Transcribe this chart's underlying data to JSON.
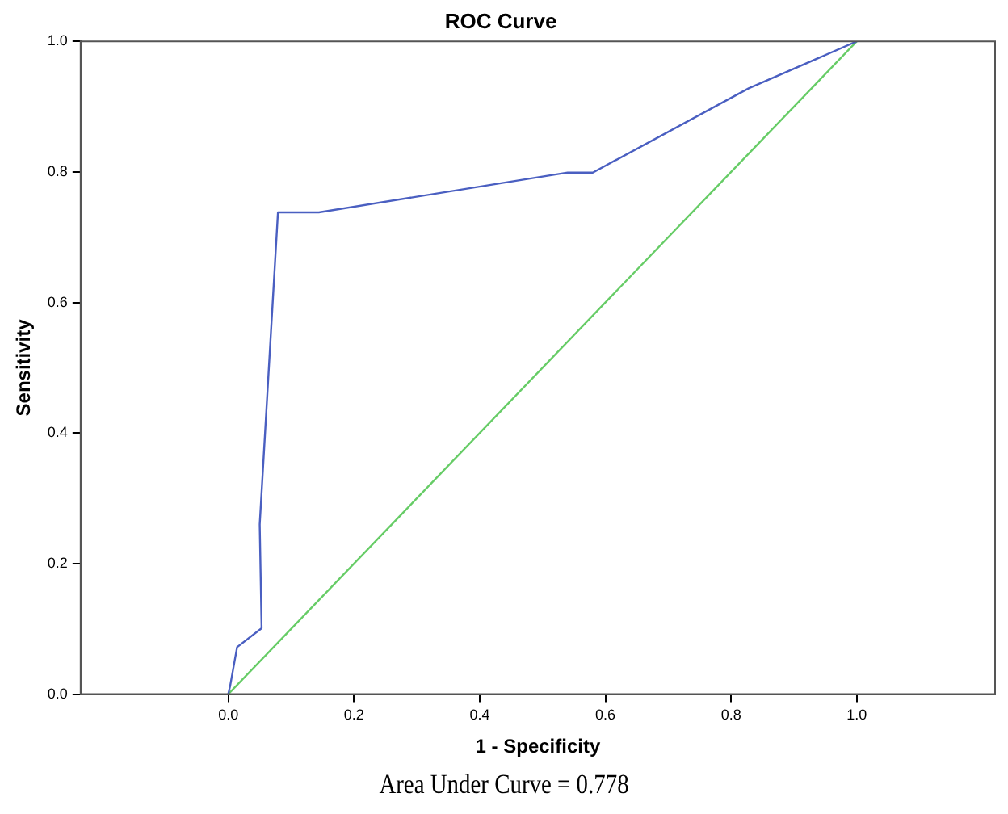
{
  "chart_data": {
    "type": "line",
    "title": "ROC Curve",
    "xlabel": "1 - Specificity",
    "ylabel": "Sensitivity",
    "annotations": [
      "Area Under Curve = 0.778"
    ],
    "xlim": [
      -0.235,
      1.22
    ],
    "ylim": [
      0,
      1
    ],
    "xticks": [
      {
        "value": 0,
        "label": "0.0"
      },
      {
        "value": 0.2,
        "label": "0.2"
      },
      {
        "value": 0.4,
        "label": "0.4"
      },
      {
        "value": 0.6,
        "label": "0.6"
      },
      {
        "value": 0.8,
        "label": "0.8"
      },
      {
        "value": 1,
        "label": "1.0"
      }
    ],
    "yticks": [
      {
        "value": 0,
        "label": "0.0"
      },
      {
        "value": 0.2,
        "label": "0.2"
      },
      {
        "value": 0.4,
        "label": "0.4"
      },
      {
        "value": 0.6,
        "label": "0.6"
      },
      {
        "value": 0.8,
        "label": "0.8"
      },
      {
        "value": 1,
        "label": "1.0"
      }
    ],
    "grid": false,
    "legend": false,
    "marker": "none",
    "line_style": "solid",
    "series": [
      {
        "color": "#4a5fc1",
        "x": [
          0,
          0.003,
          0.014,
          0.053,
          0.05,
          0.079,
          0.144,
          0.54,
          0.58,
          0.828,
          1
        ],
        "values": [
          0,
          0.013,
          0.072,
          0.101,
          0.26,
          0.738,
          0.738,
          0.799,
          0.799,
          0.928,
          1
        ]
      },
      {
        "color": "#66cc66",
        "x": [
          0,
          1
        ],
        "values": [
          0,
          1
        ]
      }
    ]
  }
}
